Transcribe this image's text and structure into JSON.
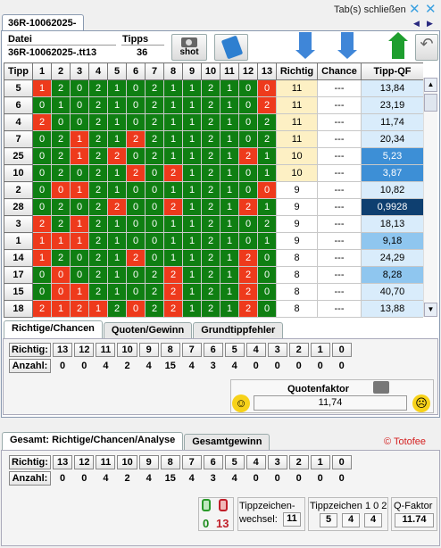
{
  "window": {
    "tab_label": "36R-10062025-",
    "close_text": "Tab(s) schließen"
  },
  "info": {
    "datei_label": "Datei",
    "datei_value": "36R-10062025-.tt13",
    "tipps_label": "Tipps",
    "tipps_value": "36",
    "shot_label": "shot"
  },
  "table": {
    "columns": [
      "Tipp",
      "1",
      "2",
      "3",
      "4",
      "5",
      "6",
      "7",
      "8",
      "9",
      "10",
      "11",
      "12",
      "13",
      "Richtig",
      "Chance",
      "Tipp-QF"
    ],
    "rows": [
      {
        "tipp": "5",
        "cells": [
          "1",
          "2",
          "0",
          "2",
          "1",
          "0",
          "2",
          "1",
          "1",
          "2",
          "1",
          "0",
          "0"
        ],
        "red": [
          0,
          12
        ],
        "richtig": "11",
        "chance": "---",
        "qf": "13,84"
      },
      {
        "tipp": "6",
        "cells": [
          "0",
          "1",
          "0",
          "2",
          "1",
          "0",
          "2",
          "1",
          "1",
          "2",
          "1",
          "0",
          "2"
        ],
        "red": [
          12
        ],
        "richtig": "11",
        "chance": "---",
        "qf": "23,19"
      },
      {
        "tipp": "4",
        "cells": [
          "2",
          "0",
          "0",
          "2",
          "1",
          "0",
          "2",
          "1",
          "1",
          "2",
          "1",
          "0",
          "2"
        ],
        "red": [
          0
        ],
        "richtig": "11",
        "chance": "---",
        "qf": "11,74"
      },
      {
        "tipp": "7",
        "cells": [
          "0",
          "2",
          "1",
          "2",
          "1",
          "2",
          "2",
          "1",
          "1",
          "2",
          "1",
          "0",
          "2"
        ],
        "red": [
          2,
          5
        ],
        "richtig": "11",
        "chance": "---",
        "qf": "20,34"
      },
      {
        "tipp": "25",
        "cells": [
          "0",
          "2",
          "1",
          "2",
          "2",
          "0",
          "2",
          "1",
          "1",
          "2",
          "1",
          "2",
          "1"
        ],
        "red": [
          2,
          4,
          11
        ],
        "richtig": "10",
        "chance": "---",
        "qf": "5,23"
      },
      {
        "tipp": "10",
        "cells": [
          "0",
          "2",
          "0",
          "2",
          "1",
          "2",
          "0",
          "2",
          "1",
          "2",
          "1",
          "0",
          "1"
        ],
        "red": [
          5,
          7
        ],
        "richtig": "10",
        "chance": "---",
        "qf": "3,87"
      },
      {
        "tipp": "2",
        "cells": [
          "0",
          "0",
          "1",
          "2",
          "1",
          "0",
          "0",
          "1",
          "1",
          "2",
          "1",
          "0",
          "0"
        ],
        "red": [
          1,
          2,
          12
        ],
        "richtig": "9",
        "chance": "---",
        "qf": "10,82"
      },
      {
        "tipp": "28",
        "cells": [
          "0",
          "2",
          "0",
          "2",
          "2",
          "0",
          "0",
          "2",
          "1",
          "2",
          "1",
          "2",
          "1"
        ],
        "red": [
          4,
          7,
          11
        ],
        "richtig": "9",
        "chance": "---",
        "qf": "0,9928"
      },
      {
        "tipp": "3",
        "cells": [
          "2",
          "2",
          "1",
          "2",
          "1",
          "0",
          "0",
          "1",
          "1",
          "2",
          "1",
          "0",
          "2"
        ],
        "red": [
          0,
          2
        ],
        "richtig": "9",
        "chance": "---",
        "qf": "18,13"
      },
      {
        "tipp": "1",
        "cells": [
          "1",
          "1",
          "1",
          "2",
          "1",
          "0",
          "0",
          "1",
          "1",
          "2",
          "1",
          "0",
          "1"
        ],
        "red": [
          0,
          1,
          2
        ],
        "richtig": "9",
        "chance": "---",
        "qf": "9,18"
      },
      {
        "tipp": "14",
        "cells": [
          "1",
          "2",
          "0",
          "2",
          "1",
          "2",
          "0",
          "1",
          "1",
          "2",
          "1",
          "2",
          "0"
        ],
        "red": [
          0,
          5,
          11
        ],
        "richtig": "8",
        "chance": "---",
        "qf": "24,29"
      },
      {
        "tipp": "17",
        "cells": [
          "0",
          "0",
          "0",
          "2",
          "1",
          "0",
          "2",
          "2",
          "1",
          "2",
          "1",
          "2",
          "0"
        ],
        "red": [
          1,
          7,
          11
        ],
        "richtig": "8",
        "chance": "---",
        "qf": "8,28"
      },
      {
        "tipp": "15",
        "cells": [
          "0",
          "0",
          "1",
          "2",
          "1",
          "0",
          "2",
          "2",
          "1",
          "2",
          "1",
          "2",
          "0"
        ],
        "red": [
          1,
          2,
          7,
          11
        ],
        "richtig": "8",
        "chance": "---",
        "qf": "40,70"
      },
      {
        "tipp": "18",
        "cells": [
          "2",
          "1",
          "2",
          "1",
          "2",
          "0",
          "2",
          "2",
          "1",
          "2",
          "1",
          "2",
          "0"
        ],
        "red": [
          0,
          1,
          2,
          3,
          5,
          7,
          11
        ],
        "richtig": "8",
        "chance": "---",
        "qf": "13,88"
      }
    ]
  },
  "tabs1": [
    "Richtige/Chancen",
    "Quoten/Gewinn",
    "Grundtippfehler"
  ],
  "stats1": {
    "richtig_label": "Richtig:",
    "anzahl_label": "Anzahl:",
    "richtig": [
      "13",
      "12",
      "11",
      "10",
      "9",
      "8",
      "7",
      "6",
      "5",
      "4",
      "3",
      "2",
      "1",
      "0"
    ],
    "anzahl": [
      "0",
      "0",
      "4",
      "2",
      "4",
      "15",
      "4",
      "3",
      "4",
      "0",
      "0",
      "0",
      "0",
      "0"
    ]
  },
  "quotenfaktor": {
    "label": "Quotenfaktor",
    "value": "11,74"
  },
  "tabs2": [
    "Gesamt: Richtige/Chancen/Analyse",
    "Gesamtgewinn"
  ],
  "brand": "© Totofee",
  "stats2": {
    "richtig_label": "Richtig:",
    "anzahl_label": "Anzahl:",
    "richtig": [
      "13",
      "12",
      "11",
      "10",
      "9",
      "8",
      "7",
      "6",
      "5",
      "4",
      "3",
      "2",
      "1",
      "0"
    ],
    "anzahl": [
      "0",
      "0",
      "4",
      "2",
      "4",
      "15",
      "4",
      "3",
      "4",
      "0",
      "0",
      "0",
      "0",
      "0"
    ]
  },
  "footer": {
    "lock_green": "0",
    "lock_red": "13",
    "tz_label1": "Tippzeichen-",
    "tz_label2": "wechsel:",
    "tz_value": "11",
    "tz102_label": "Tippzeichen 1 0 2",
    "tz102_values": [
      "5",
      "4",
      "4"
    ],
    "qf_label": "Q-Faktor",
    "qf_value": "11.74"
  },
  "colors": {
    "green": "#0f7f12",
    "red": "#ee3a1c",
    "richtig_bg": "#fdf0c4",
    "qf_light": "#d9ecfb",
    "qf_mid": "#8fc6ef",
    "qf_strong": "#3d8fd6",
    "qf_dark": "#0e3f70"
  }
}
